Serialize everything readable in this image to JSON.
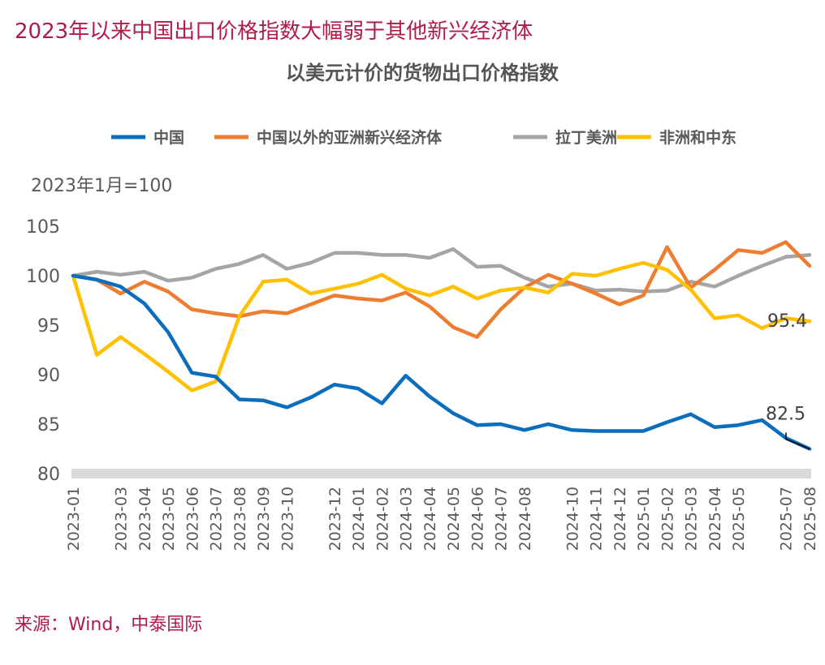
{
  "headline": "2023年以来中国出口价格指数大幅弱于其他新兴经济体",
  "source": "来源：Wind，中泰国际",
  "chart_data": {
    "type": "line",
    "title": "以美元计价的货物出口价格指数",
    "unit_label": "2023年1月=100",
    "xlabel": "",
    "ylabel": "",
    "ylim": [
      80,
      105
    ],
    "yticks": [
      80,
      85,
      90,
      95,
      100,
      105
    ],
    "grid": false,
    "legend_position": "top",
    "x": [
      "2023-01",
      "2023-02",
      "2023-03",
      "2023-04",
      "2023-05",
      "2023-06",
      "2023-07",
      "2023-08",
      "2023-09",
      "2023-10",
      "2023-11",
      "2023-12",
      "2024-01",
      "2024-02",
      "2024-03",
      "2024-04",
      "2024-05",
      "2024-06",
      "2024-07",
      "2024-08",
      "2024-09",
      "2024-10",
      "2024-11",
      "2024-12",
      "2025-01",
      "2025-02",
      "2025-03",
      "2025-04",
      "2025-05",
      "2025-06",
      "2025-07",
      "2025-08"
    ],
    "x_tick_labels": [
      "2023-01",
      "2023-03",
      "2023-04",
      "2023-05",
      "2023-06",
      "2023-07",
      "2023-08",
      "2023-09",
      "2023-10",
      "2023-12",
      "2024-01",
      "2024-02",
      "2024-03",
      "2024-04",
      "2024-05",
      "2024-06",
      "2024-07",
      "2024-08",
      "2024-10",
      "2024-11",
      "2024-12",
      "2025-01",
      "2025-02",
      "2025-03",
      "2025-04",
      "2025-05",
      "2025-07",
      "2025-08"
    ],
    "series": [
      {
        "name": "中国",
        "color": "#0a6ebd",
        "values": [
          100,
          99.6,
          98.9,
          97.2,
          94.3,
          90.2,
          89.8,
          87.5,
          87.4,
          86.7,
          87.7,
          89.0,
          88.6,
          87.1,
          89.9,
          87.8,
          86.1,
          84.9,
          85.0,
          84.4,
          85.0,
          84.4,
          84.3,
          84.3,
          84.3,
          85.2,
          86.0,
          84.7,
          84.9,
          85.4,
          83.6,
          82.5
        ]
      },
      {
        "name": "中国以外的亚洲新兴经济体",
        "color": "#ed7d31",
        "values": [
          100,
          99.6,
          98.2,
          99.4,
          98.4,
          96.6,
          96.2,
          95.9,
          96.4,
          96.2,
          97.1,
          98.0,
          97.7,
          97.5,
          98.3,
          96.9,
          94.8,
          93.8,
          96.6,
          98.8,
          100.1,
          99.2,
          98.2,
          97.1,
          98.0,
          102.9,
          98.8,
          100.6,
          102.6,
          102.3,
          103.4,
          101.0
        ]
      },
      {
        "name": "拉丁美洲",
        "color": "#a5a5a5",
        "values": [
          100,
          100.4,
          100.1,
          100.4,
          99.5,
          99.8,
          100.7,
          101.2,
          102.1,
          100.7,
          101.3,
          102.3,
          102.3,
          102.1,
          102.1,
          101.8,
          102.7,
          100.9,
          101.0,
          99.8,
          98.9,
          99.2,
          98.5,
          98.6,
          98.4,
          98.5,
          99.4,
          98.9,
          100.0,
          101.0,
          101.9,
          102.1
        ]
      },
      {
        "name": "非洲和中东",
        "color": "#ffc000",
        "values": [
          100,
          92.0,
          93.8,
          92.1,
          90.3,
          88.4,
          89.3,
          95.9,
          99.4,
          99.6,
          98.2,
          98.7,
          99.2,
          100.1,
          98.7,
          98.0,
          98.9,
          97.7,
          98.5,
          98.8,
          98.3,
          100.2,
          100.0,
          100.7,
          101.3,
          100.6,
          98.6,
          95.7,
          96.0,
          94.7,
          95.7,
          95.4
        ]
      }
    ],
    "annotations": [
      {
        "series": "中国",
        "x": "2025-08",
        "text": "82.5"
      },
      {
        "series": "非洲和中东",
        "x": "2025-08",
        "text": "95.4"
      }
    ]
  }
}
